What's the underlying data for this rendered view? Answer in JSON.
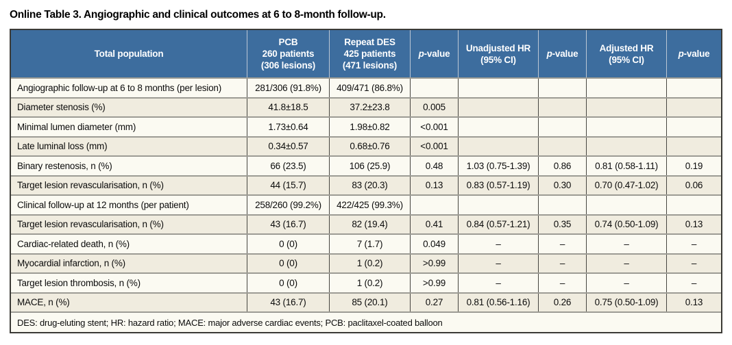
{
  "title": "Online Table 3. Angiographic and clinical outcomes at 6 to 8-month follow-up.",
  "colors": {
    "header_bg": "#3d6d9e",
    "header_text": "#ffffff",
    "row_light_bg": "#fbfaf2",
    "row_beige_bg": "#f0ecdf",
    "outer_border": "#3b3a36",
    "row_separator": "#9c9b94",
    "column_separator": "#45443f",
    "header_separator": "#bcc7d5",
    "title_text": "#000000"
  },
  "table": {
    "columns": [
      {
        "id": "total-population",
        "lines": [
          "Total population"
        ]
      },
      {
        "id": "pcb",
        "lines": [
          "PCB",
          "260 patients",
          "(306 lesions)"
        ]
      },
      {
        "id": "repeat-des",
        "lines": [
          "Repeat DES",
          "425 patients",
          "(471 lesions)"
        ]
      },
      {
        "id": "p-value-1",
        "lines": [
          "p-value"
        ]
      },
      {
        "id": "unadjusted-hr",
        "lines": [
          "Unadjusted HR",
          "(95% CI)"
        ]
      },
      {
        "id": "p-value-2",
        "lines": [
          "p-value"
        ]
      },
      {
        "id": "adjusted-hr",
        "lines": [
          "Adjusted HR",
          "(95% CI)"
        ]
      },
      {
        "id": "p-value-3",
        "lines": [
          "p-value"
        ]
      }
    ],
    "rows": [
      {
        "label": "Angiographic follow-up at 6 to 8 months (per lesion)",
        "cells": [
          "281/306 (91.8%)",
          "409/471 (86.8%)",
          "",
          "",
          "",
          "",
          ""
        ]
      },
      {
        "label": "Diameter stenosis (%)",
        "cells": [
          "41.8±18.5",
          "37.2±23.8",
          "0.005",
          "",
          "",
          "",
          ""
        ]
      },
      {
        "label": "Minimal lumen diameter (mm)",
        "cells": [
          "1.73±0.64",
          "1.98±0.82",
          "<0.001",
          "",
          "",
          "",
          ""
        ]
      },
      {
        "label": "Late luminal loss (mm)",
        "cells": [
          "0.34±0.57",
          "0.68±0.76",
          "<0.001",
          "",
          "",
          "",
          ""
        ]
      },
      {
        "label": "Binary restenosis, n (%)",
        "cells": [
          "66 (23.5)",
          "106 (25.9)",
          "0.48",
          "1.03 (0.75-1.39)",
          "0.86",
          "0.81 (0.58-1.11)",
          "0.19"
        ]
      },
      {
        "label": "Target lesion revascularisation, n (%)",
        "cells": [
          "44 (15.7)",
          "83 (20.3)",
          "0.13",
          "0.83 (0.57-1.19)",
          "0.30",
          "0.70 (0.47-1.02)",
          "0.06"
        ]
      },
      {
        "label": "Clinical follow-up at 12 months (per patient)",
        "cells": [
          "258/260 (99.2%)",
          "422/425 (99.3%)",
          "",
          "",
          "",
          "",
          ""
        ]
      },
      {
        "label": "Target lesion revascularisation, n (%)",
        "cells": [
          "43 (16.7)",
          "82 (19.4)",
          "0.41",
          "0.84 (0.57-1.21)",
          "0.35",
          "0.74 (0.50-1.09)",
          "0.13"
        ]
      },
      {
        "label": "Cardiac-related death, n (%)",
        "cells": [
          "0 (0)",
          "7 (1.7)",
          "0.049",
          "–",
          "–",
          "–",
          "–"
        ]
      },
      {
        "label": "Myocardial infarction, n (%)",
        "cells": [
          "0 (0)",
          "1 (0.2)",
          ">0.99",
          "–",
          "–",
          "–",
          "–"
        ]
      },
      {
        "label": "Target lesion thrombosis, n (%)",
        "cells": [
          "0 (0)",
          "1 (0.2)",
          ">0.99",
          "–",
          "–",
          "–",
          "–"
        ]
      },
      {
        "label": "MACE, n (%)",
        "cells": [
          "43 (16.7)",
          "85 (20.1)",
          "0.27",
          "0.81 (0.56-1.16)",
          "0.26",
          "0.75 (0.50-1.09)",
          "0.13"
        ]
      }
    ],
    "footnote": "DES: drug-eluting stent; HR: hazard ratio; MACE: major adverse cardiac events; PCB: paclitaxel-coated balloon"
  }
}
